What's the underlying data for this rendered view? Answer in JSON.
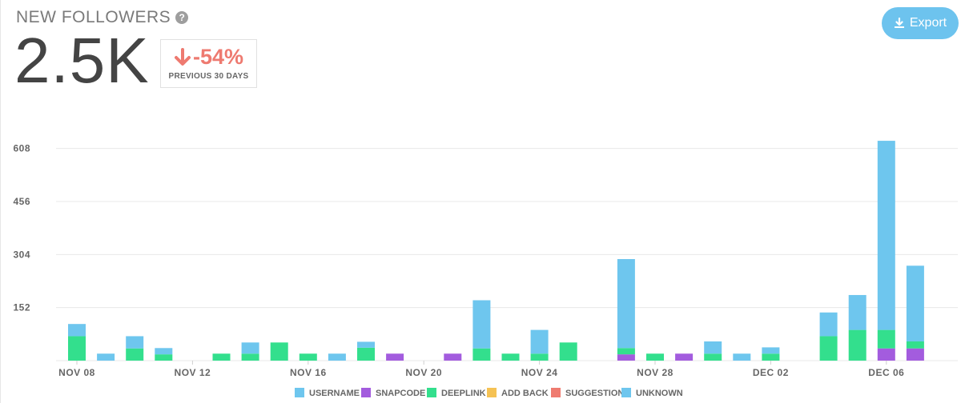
{
  "header": {
    "title": "NEW FOLLOWERS",
    "help_icon": "?",
    "big_number": "2.5K",
    "change": "-54%",
    "change_label": "PREVIOUS 30 DAYS",
    "export_label": "Export"
  },
  "colors": {
    "username": "#6ec6ee",
    "snapcode": "#a35cde",
    "deeplink": "#33df8d",
    "add_back": "#f5c254",
    "suggestion": "#ef7b70",
    "unknown": "#6ec6ee",
    "accent": "#6dc3ee",
    "negative": "#ee7a70"
  },
  "chart_data": {
    "type": "bar",
    "stacked": true,
    "categories": [
      "Nov 08",
      "Nov 09",
      "Nov 10",
      "Nov 11",
      "Nov 12",
      "Nov 13",
      "Nov 14",
      "Nov 15",
      "Nov 16",
      "Nov 17",
      "Nov 18",
      "Nov 19",
      "Nov 20",
      "Nov 21",
      "Nov 22",
      "Nov 23",
      "Nov 24",
      "Nov 25",
      "Nov 26",
      "Nov 27",
      "Nov 28",
      "Nov 29",
      "Nov 30",
      "Dec 01",
      "Dec 02",
      "Dec 03",
      "Dec 04",
      "Dec 05",
      "Dec 06",
      "Dec 07"
    ],
    "x_tick_labels": [
      "NOV 08",
      "NOV 12",
      "NOV 16",
      "NOV 20",
      "NOV 24",
      "NOV 28",
      "DEC 02",
      "DEC 06"
    ],
    "x_tick_indices": [
      0,
      4,
      8,
      12,
      16,
      20,
      24,
      28
    ],
    "y_ticks": [
      152,
      304,
      456,
      608
    ],
    "ylim": [
      0,
      676
    ],
    "grid": true,
    "legend_position": "bottom",
    "series": [
      {
        "name": "USERNAME",
        "color_key": "username",
        "values": [
          0,
          0,
          0,
          0,
          0,
          0,
          0,
          0,
          0,
          0,
          0,
          0,
          0,
          0,
          0,
          0,
          0,
          0,
          0,
          0,
          0,
          0,
          0,
          0,
          0,
          0,
          0,
          0,
          0,
          0
        ]
      },
      {
        "name": "SNAPCODE",
        "color_key": "snapcode",
        "values": [
          0,
          0,
          0,
          0,
          0,
          0,
          0,
          0,
          0,
          0,
          0,
          20,
          0,
          20,
          0,
          0,
          0,
          0,
          0,
          18,
          0,
          20,
          0,
          0,
          0,
          0,
          0,
          0,
          35,
          35
        ]
      },
      {
        "name": "DEEPLINK",
        "color_key": "deeplink",
        "values": [
          70,
          0,
          35,
          18,
          0,
          20,
          20,
          52,
          20,
          0,
          37,
          0,
          0,
          0,
          35,
          20,
          20,
          52,
          0,
          18,
          20,
          0,
          20,
          0,
          20,
          0,
          70,
          88,
          53,
          20
        ]
      },
      {
        "name": "ADD BACK",
        "color_key": "add_back",
        "values": [
          0,
          0,
          0,
          0,
          0,
          0,
          0,
          0,
          0,
          0,
          0,
          0,
          0,
          0,
          0,
          0,
          0,
          0,
          0,
          0,
          0,
          0,
          0,
          0,
          0,
          0,
          0,
          0,
          0,
          0
        ]
      },
      {
        "name": "SUGGESTION",
        "color_key": "suggestion",
        "values": [
          0,
          0,
          0,
          0,
          0,
          0,
          0,
          0,
          0,
          0,
          0,
          0,
          0,
          0,
          0,
          0,
          0,
          0,
          0,
          0,
          0,
          0,
          0,
          0,
          0,
          0,
          0,
          0,
          0,
          0
        ]
      },
      {
        "name": "UNKNOWN",
        "color_key": "unknown",
        "values": [
          35,
          20,
          35,
          18,
          0,
          0,
          32,
          0,
          0,
          20,
          17,
          0,
          0,
          0,
          138,
          0,
          68,
          0,
          0,
          255,
          0,
          0,
          35,
          20,
          18,
          0,
          68,
          100,
          542,
          217
        ]
      }
    ]
  }
}
